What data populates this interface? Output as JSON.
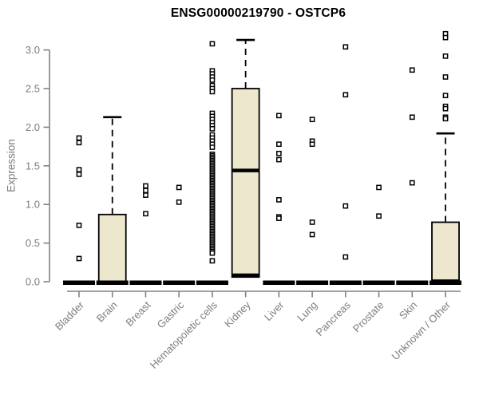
{
  "title": "ENSG00000219790 - OSTCP6",
  "y_axis": {
    "label": "Expression",
    "tick_values": [
      0.0,
      0.5,
      1.0,
      1.5,
      2.0,
      2.5,
      3.0
    ],
    "tick_labels": [
      "0.0",
      "0.5",
      "1.0",
      "1.5",
      "2.0",
      "2.5",
      "3.0"
    ]
  },
  "colors": {
    "background": "#ffffff",
    "box_fill": "#ece7cd",
    "box_border": "#000000",
    "whisker": "#000000",
    "outlier": "#000000",
    "zero_bar": "#000000",
    "axis_line": "#828282",
    "tick_text": "#7d7d7d",
    "title_text": "#000000"
  },
  "chart_data": {
    "type": "boxplot",
    "title": "ENSG00000219790 - OSTCP6",
    "xlabel": "",
    "ylabel": "Expression",
    "ylim": [
      0,
      3.25
    ],
    "grid": false,
    "point_style": "open-square",
    "categories": [
      {
        "label": "Bladder",
        "median": 0,
        "q1": 0,
        "q3": 0,
        "whisker_high": null,
        "zero_bar": true,
        "outliers": [
          1.86,
          1.8,
          1.45,
          1.39,
          0.73,
          0.3
        ]
      },
      {
        "label": "Brain",
        "median": 0,
        "q1": 0,
        "q3": 0.87,
        "whisker_high": 2.13,
        "zero_bar": true,
        "outliers": []
      },
      {
        "label": "Breast",
        "median": 0,
        "q1": 0,
        "q3": 0,
        "whisker_high": null,
        "zero_bar": true,
        "outliers": [
          1.24,
          1.18,
          1.12,
          0.88
        ]
      },
      {
        "label": "Gastric",
        "median": 0,
        "q1": 0,
        "q3": 0,
        "whisker_high": null,
        "zero_bar": true,
        "outliers": [
          1.22,
          1.03
        ]
      },
      {
        "label": "Hematopoietic cells",
        "median": 0,
        "q1": 0,
        "q3": 0,
        "whisker_high": null,
        "zero_bar": true,
        "outliers": [
          3.08,
          2.73,
          2.69,
          2.65,
          2.61,
          2.54,
          2.5,
          2.46,
          2.18,
          2.14,
          2.1,
          2.06,
          2.02,
          1.98,
          1.9,
          1.86,
          1.82,
          1.78,
          1.74,
          1.65,
          1.63,
          1.61,
          1.59,
          1.57,
          1.55,
          1.53,
          1.51,
          1.49,
          1.47,
          1.45,
          1.43,
          1.41,
          1.39,
          1.37,
          1.35,
          1.33,
          1.31,
          1.29,
          1.27,
          1.25,
          1.23,
          1.21,
          1.19,
          1.17,
          1.15,
          1.13,
          1.11,
          1.09,
          1.07,
          1.05,
          1.03,
          1.01,
          0.99,
          0.97,
          0.95,
          0.93,
          0.91,
          0.89,
          0.87,
          0.85,
          0.83,
          0.81,
          0.79,
          0.77,
          0.75,
          0.73,
          0.71,
          0.69,
          0.67,
          0.65,
          0.63,
          0.61,
          0.59,
          0.57,
          0.55,
          0.53,
          0.51,
          0.49,
          0.47,
          0.45,
          0.43,
          0.41,
          0.39,
          0.37,
          0.27
        ]
      },
      {
        "label": "Kidney",
        "median": 1.44,
        "q1": 0.06,
        "q3": 2.5,
        "whisker_high": 3.13,
        "zero_bar": false,
        "thick_bottom": true,
        "outliers": []
      },
      {
        "label": "Liver",
        "median": 0,
        "q1": 0,
        "q3": 0,
        "whisker_high": null,
        "zero_bar": true,
        "outliers": [
          2.15,
          1.78,
          1.66,
          1.58,
          1.06,
          0.84,
          0.82
        ]
      },
      {
        "label": "Lung",
        "median": 0,
        "q1": 0,
        "q3": 0,
        "whisker_high": null,
        "zero_bar": true,
        "outliers": [
          2.1,
          1.82,
          1.78,
          0.77,
          0.61
        ]
      },
      {
        "label": "Pancreas",
        "median": 0,
        "q1": 0,
        "q3": 0,
        "whisker_high": null,
        "zero_bar": true,
        "outliers": [
          3.04,
          2.42,
          0.98,
          0.32
        ]
      },
      {
        "label": "Prostate",
        "median": 0,
        "q1": 0,
        "q3": 0,
        "whisker_high": null,
        "zero_bar": true,
        "outliers": [
          1.22,
          0.85
        ]
      },
      {
        "label": "Skin",
        "median": 0,
        "q1": 0,
        "q3": 0,
        "whisker_high": null,
        "zero_bar": true,
        "outliers": [
          2.74,
          2.13,
          1.28
        ]
      },
      {
        "label": "Unknown / Other",
        "median": 0,
        "q1": 0.02,
        "q3": 0.77,
        "whisker_high": 1.92,
        "zero_bar": true,
        "outliers": [
          3.21,
          3.16,
          2.92,
          2.65,
          2.41,
          2.27,
          2.24,
          2.13,
          2.11
        ]
      }
    ]
  }
}
